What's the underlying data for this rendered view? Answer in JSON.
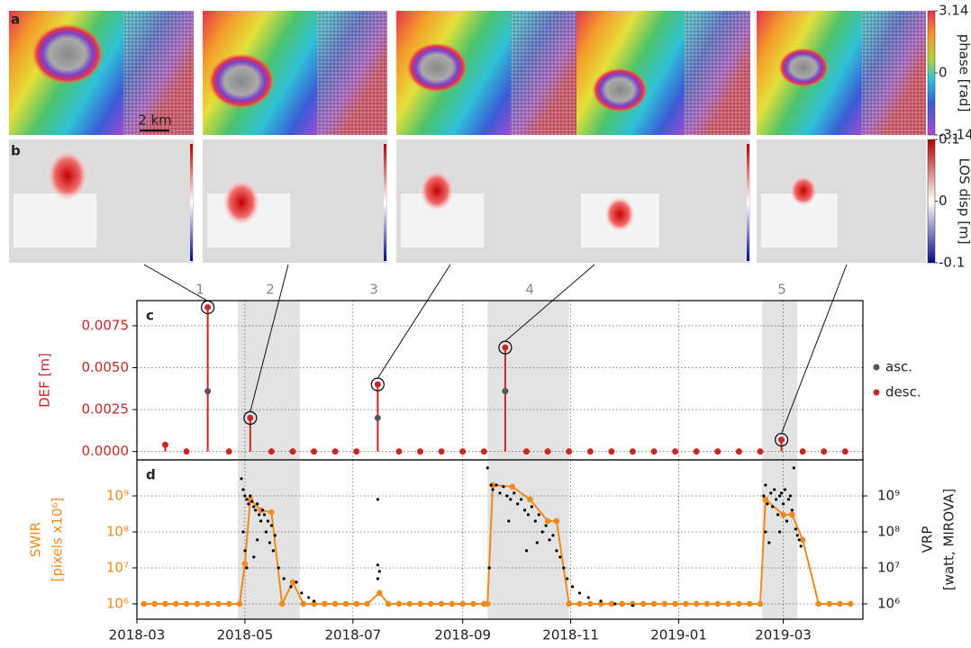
{
  "maps": {
    "row_a_label": "a",
    "row_b_label": "b",
    "scale_bar": "2 km",
    "phase_colorbar": {
      "label": "phase [rad]",
      "lim": [
        -3.14,
        3.14
      ],
      "ticks": [
        3.14,
        0,
        -3.14
      ]
    },
    "disp_colorbar": {
      "label": "LOS disp [m]",
      "lim": [
        -0.1,
        0.1
      ],
      "ticks": [
        0.1,
        0,
        -0.1
      ]
    }
  },
  "chart_data": [
    {
      "type": "stem",
      "panel_label": "c",
      "ylabel": "DEF [m]",
      "ylabel_color": "#c62828",
      "xlim": [
        0,
        410
      ],
      "ylim": [
        -0.0005,
        0.009
      ],
      "yticks": [
        {
          "value": 0,
          "label": "0.0000"
        },
        0.0025,
        {
          "value": 0.005,
          "label": "0.0050"
        },
        0.0075
      ],
      "grid": true,
      "legend": "right",
      "shaded_spans": [
        [
          57,
          92
        ],
        [
          198,
          244
        ],
        [
          353,
          373
        ]
      ],
      "event_labels": [
        "1",
        "2",
        "3",
        "4",
        "5"
      ],
      "highlight": {
        "series": 1,
        "indices": [
          2,
          4,
          10,
          16,
          29
        ]
      },
      "series": [
        {
          "name": "asc.",
          "color": "#555555",
          "x": [
            40,
            136,
            208
          ],
          "values": [
            0.0036,
            0.002,
            0.0036
          ]
        },
        {
          "name": "desc.",
          "color": "#c62828",
          "x": [
            16,
            28,
            40,
            52,
            64,
            76,
            88,
            100,
            112,
            124,
            136,
            148,
            160,
            172,
            184,
            196,
            208,
            220,
            232,
            244,
            256,
            268,
            280,
            292,
            304,
            316,
            328,
            340,
            352,
            364,
            376,
            388,
            400
          ],
          "values": [
            0.0004,
            0,
            0.0086,
            0,
            0.002,
            0,
            0,
            0,
            0,
            0,
            0.004,
            0,
            0,
            0,
            0,
            0,
            0.0062,
            0,
            0,
            0,
            0,
            0,
            0,
            0,
            0,
            0,
            0,
            0,
            0,
            0.0007,
            0,
            0,
            0
          ]
        }
      ]
    },
    {
      "type": "line",
      "panel_label": "d",
      "log": true,
      "ylabel": [
        "SWIR",
        "[pixels x10⁶]"
      ],
      "ylabel_color": "#ee8a1e",
      "y2label": [
        "VRP",
        "[watt, MIROVA]"
      ],
      "xlim": [
        0,
        410
      ],
      "xticks": [
        {
          "value": 0,
          "label": "2018-03"
        },
        {
          "value": 61,
          "label": "2018-05"
        },
        {
          "value": 122,
          "label": "2018-07"
        },
        {
          "value": 184,
          "label": "2018-09"
        },
        {
          "value": 245,
          "label": "2018-11"
        },
        {
          "value": 306,
          "label": "2019-01"
        },
        {
          "value": 365,
          "label": "2019-03"
        }
      ],
      "ylim": [
        375000,
        10000000000.0
      ],
      "yticks": [
        {
          "value": 1000000.0,
          "label": "10⁶"
        },
        {
          "value": 10000000.0,
          "label": "10⁷"
        },
        {
          "value": 100000000.0,
          "label": "10⁸"
        },
        {
          "value": 1000000000.0,
          "label": "10⁹"
        }
      ],
      "y2lim": [
        375000,
        10000000000.0
      ],
      "y2ticks": [
        {
          "value": 1000000.0,
          "label": "10⁶"
        },
        {
          "value": 10000000.0,
          "label": "10⁷"
        },
        {
          "value": 100000000.0,
          "label": "10⁸"
        },
        {
          "value": 1000000000.0,
          "label": "10⁹"
        }
      ],
      "grid": true,
      "shaded_spans": [
        [
          57,
          92
        ],
        [
          198,
          244
        ],
        [
          353,
          373
        ]
      ],
      "series": [
        {
          "name": "SWIR",
          "color": "#ee8a1e",
          "x": [
            4,
            10,
            16,
            22,
            28,
            34,
            40,
            46,
            52,
            58,
            61,
            64,
            70,
            76,
            82,
            88,
            94,
            100,
            106,
            112,
            118,
            124,
            130,
            137,
            142,
            148,
            154,
            160,
            166,
            172,
            178,
            184,
            190,
            196,
            198,
            201,
            212,
            222,
            232,
            237,
            244,
            250,
            256,
            262,
            268,
            274,
            280,
            286,
            292,
            298,
            304,
            310,
            316,
            322,
            328,
            334,
            340,
            346,
            352,
            355,
            365,
            370,
            376,
            385,
            391,
            397,
            403
          ],
          "values": [
            1000000.0,
            1000000.0,
            1000000.0,
            1000000.0,
            1000000.0,
            1000000.0,
            1000000.0,
            1000000.0,
            1000000.0,
            1000000.0,
            13000000.0,
            800000000.0,
            400000000.0,
            350000000.0,
            1000000.0,
            4000000.0,
            1000000.0,
            1000000.0,
            1000000.0,
            1000000.0,
            1000000.0,
            1000000.0,
            1000000.0,
            2000000.0,
            1000000.0,
            1000000.0,
            1000000.0,
            1000000.0,
            1000000.0,
            1000000.0,
            1000000.0,
            1000000.0,
            1000000.0,
            1000000.0,
            1000000.0,
            2000000000.0,
            1800000000.0,
            800000000.0,
            200000000.0,
            200000000.0,
            1000000.0,
            1000000.0,
            1000000.0,
            1000000.0,
            1000000.0,
            1000000.0,
            1000000.0,
            1000000.0,
            1000000.0,
            1000000.0,
            1000000.0,
            1000000.0,
            1000000.0,
            1000000.0,
            1000000.0,
            1000000.0,
            1000000.0,
            1000000.0,
            1000000.0,
            800000000.0,
            300000000.0,
            300000000.0,
            60000000.0,
            1000000.0,
            1000000.0,
            1000000.0,
            1000000.0
          ]
        },
        {
          "name": "VRP",
          "color": "#000000",
          "axis": "y2",
          "x": [
            59,
            60,
            61,
            62,
            63,
            64,
            65,
            66,
            67,
            68,
            69,
            70,
            71,
            72,
            73,
            74,
            75,
            76,
            77,
            78,
            60,
            61,
            62,
            80,
            83,
            87,
            90,
            93,
            97,
            100,
            66,
            68,
            136,
            136,
            137,
            136,
            198,
            200,
            201,
            203,
            205,
            207,
            209,
            211,
            213,
            215,
            217,
            219,
            221,
            223,
            225,
            227,
            229,
            231,
            233,
            235,
            237,
            239,
            241,
            243,
            246,
            250,
            255,
            262,
            270,
            280,
            210,
            220,
            226,
            199,
            354,
            355,
            356,
            358,
            359,
            360,
            361,
            362,
            363,
            364,
            365,
            366,
            367,
            368,
            369,
            370,
            371,
            372,
            373,
            374,
            375,
            355,
            357,
            363
          ],
          "values": [
            3000000000.0,
            1500000000.0,
            1000000000.0,
            800000000.0,
            600000000.0,
            1000000000.0,
            700000000.0,
            500000000.0,
            400000000.0,
            600000000.0,
            300000000.0,
            200000000.0,
            400000000.0,
            300000000.0,
            100000000.0,
            200000000.0,
            50000000.0,
            150000000.0,
            30000000.0,
            80000000.0,
            100000000.0,
            30000000.0,
            10000000.0,
            10000000.0,
            5000000.0,
            3000000.0,
            4000000.0,
            2000000.0,
            1500000.0,
            1200000.0,
            20000000.0,
            60000000.0,
            800000000.0,
            12000000.0,
            8000000.0,
            5000000.0,
            6000000000.0,
            2000000000.0,
            1500000000.0,
            2000000000.0,
            1200000000.0,
            1800000000.0,
            1000000000.0,
            800000000.0,
            1200000000.0,
            600000000.0,
            800000000.0,
            400000000.0,
            300000000.0,
            500000000.0,
            200000000.0,
            300000000.0,
            100000000.0,
            150000000.0,
            60000000.0,
            80000000.0,
            30000000.0,
            20000000.0,
            10000000.0,
            5000000.0,
            3000000.0,
            2000000.0,
            1500000.0,
            1200000.0,
            1000000.0,
            900000.0,
            200000000.0,
            30000000.0,
            50000000.0,
            10000000.0,
            1000000000.0,
            2000000000.0,
            600000000.0,
            1200000000.0,
            500000000.0,
            1500000000.0,
            800000000.0,
            300000000.0,
            1000000000.0,
            1200000000.0,
            600000000.0,
            1500000000.0,
            200000000.0,
            800000000.0,
            1000000000.0,
            400000000.0,
            6000000000.0,
            120000000.0,
            80000000.0,
            60000000.0,
            40000000.0,
            100000000.0,
            50000000.0,
            100000000.0
          ]
        }
      ]
    }
  ]
}
